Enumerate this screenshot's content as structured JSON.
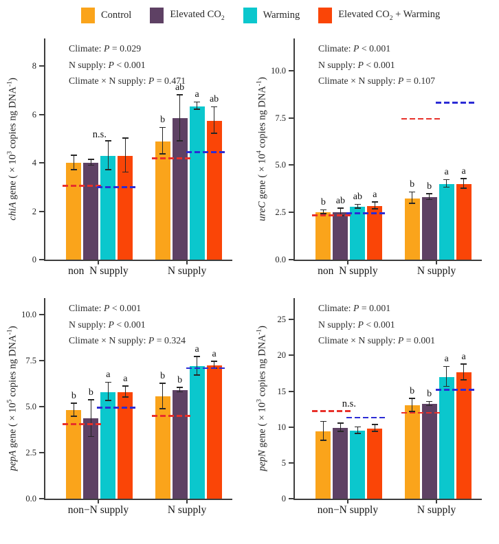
{
  "figure": {
    "colors": {
      "control": "#FAA41B",
      "elevated_co2": "#5E4164",
      "warming": "#0BC7CD",
      "eco2_warming": "#FA4507",
      "ref_red": "#E8302A",
      "ref_blue": "#2B2BD5",
      "axis": "#3C3C3C"
    },
    "series_order": [
      "control",
      "elevated_co2",
      "warming",
      "eco2_warming"
    ]
  },
  "legend": {
    "items": [
      {
        "key": "control",
        "pre": "Control",
        "sub": "",
        "post": ""
      },
      {
        "key": "elevated_co2",
        "pre": "Elevated CO",
        "sub": "2",
        "post": ""
      },
      {
        "key": "warming",
        "pre": "Warming",
        "sub": "",
        "post": ""
      },
      {
        "key": "eco2_warming",
        "pre": "Elevated CO",
        "sub": "2",
        "post": " + Warming"
      }
    ]
  },
  "chart_data": [
    {
      "id": "chiA",
      "type": "bar",
      "ylabel": {
        "gene": "chiA",
        "mid": " gene ( × 10",
        "exp": "3",
        "mid2": " copies ng DNA",
        "exp2": "-1",
        "post": ")"
      },
      "stats": [
        {
          "factor": "Climate",
          "op": "=",
          "p": "0.029"
        },
        {
          "factor": "N supply",
          "op": "<",
          "p": "0.001"
        },
        {
          "factor": "Climate × N supply",
          "op": "=",
          "p": "0.471"
        }
      ],
      "ymax": 9.15,
      "yticks": [
        {
          "v": 0,
          "label": "0"
        },
        {
          "v": 2,
          "label": "2"
        },
        {
          "v": 4,
          "label": "4"
        },
        {
          "v": 6,
          "label": "6"
        },
        {
          "v": 8,
          "label": "8"
        }
      ],
      "groups": [
        {
          "label": "non  N supply",
          "sig": {
            "text": "n.s.",
            "y": 5.15
          },
          "bars": [
            {
              "value": 4.0,
              "err": 0.3,
              "letter": ""
            },
            {
              "value": 4.0,
              "err": 0.12,
              "letter": ""
            },
            {
              "value": 4.3,
              "err": 0.6,
              "letter": ""
            },
            {
              "value": 4.3,
              "err": 0.7,
              "letter": ""
            }
          ],
          "ref_lines": [
            {
              "color": "red",
              "y": 3.05,
              "from": 0,
              "to": 1
            },
            {
              "color": "blue",
              "y": 3.0,
              "from": 2,
              "to": 3
            }
          ]
        },
        {
          "label": "N supply",
          "bars": [
            {
              "value": 4.9,
              "err": 0.55,
              "letter": "b"
            },
            {
              "value": 5.85,
              "err": 0.95,
              "letter": "ab"
            },
            {
              "value": 6.35,
              "err": 0.15,
              "letter": "a"
            },
            {
              "value": 5.75,
              "err": 0.55,
              "letter": "ab"
            }
          ],
          "ref_lines": [
            {
              "color": "red",
              "y": 4.2,
              "from": 0,
              "to": 1
            },
            {
              "color": "blue",
              "y": 4.45,
              "from": 2,
              "to": 3
            }
          ]
        }
      ]
    },
    {
      "id": "ureC",
      "type": "bar",
      "ylabel": {
        "gene": "ureC",
        "mid": " gene ( × 10",
        "exp": "4",
        "mid2": " copies ng DNA",
        "exp2": "-1",
        "post": ")"
      },
      "stats": [
        {
          "factor": "Climate",
          "op": "<",
          "p": "0.001"
        },
        {
          "factor": "N supply",
          "op": "<",
          "p": "0.001"
        },
        {
          "factor": "Climate × N supply",
          "op": "=",
          "p": "0.107"
        }
      ],
      "ymax": 11.7,
      "yticks": [
        {
          "v": 0,
          "label": "0.0"
        },
        {
          "v": 2.5,
          "label": "2.5"
        },
        {
          "v": 5,
          "label": "5.0"
        },
        {
          "v": 7.5,
          "label": "7.5"
        },
        {
          "v": 10,
          "label": "10.0"
        }
      ],
      "groups": [
        {
          "label": "non  N supply",
          "bars": [
            {
              "value": 2.5,
              "err": 0.1,
              "letter": "b"
            },
            {
              "value": 2.5,
              "err": 0.2,
              "letter": "ab"
            },
            {
              "value": 2.8,
              "err": 0.1,
              "letter": "ab"
            },
            {
              "value": 2.85,
              "err": 0.18,
              "letter": "a"
            }
          ],
          "ref_lines": [
            {
              "color": "red",
              "y": 2.35,
              "from": 0,
              "to": 1
            },
            {
              "color": "blue",
              "y": 2.45,
              "from": 2,
              "to": 3
            }
          ]
        },
        {
          "label": "N supply",
          "bars": [
            {
              "value": 3.25,
              "err": 0.3,
              "letter": "b"
            },
            {
              "value": 3.3,
              "err": 0.15,
              "letter": "b"
            },
            {
              "value": 4.0,
              "err": 0.2,
              "letter": "a"
            },
            {
              "value": 4.0,
              "err": 0.25,
              "letter": "a"
            }
          ],
          "ref_lines": [
            {
              "color": "red",
              "y": 7.45,
              "from": 0,
              "to": 1
            },
            {
              "color": "blue",
              "y": 8.3,
              "from": 2,
              "to": 3
            }
          ]
        }
      ]
    },
    {
      "id": "pepA",
      "type": "bar",
      "ylabel": {
        "gene": "pepA",
        "mid": " gene ( × 10",
        "exp": "5",
        "mid2": " copies ng DNA",
        "exp2": "-1",
        "post": ")"
      },
      "stats": [
        {
          "factor": "Climate",
          "op": "<",
          "p": "0.001"
        },
        {
          "factor": "N supply",
          "op": "<",
          "p": "0.001"
        },
        {
          "factor": "Climate × N supply",
          "op": "=",
          "p": "0.324"
        }
      ],
      "ymax": 10.9,
      "yticks": [
        {
          "v": 0,
          "label": "0.0"
        },
        {
          "v": 2.5,
          "label": "2.5"
        },
        {
          "v": 5,
          "label": "5.0"
        },
        {
          "v": 7.5,
          "label": "7.5"
        },
        {
          "v": 10,
          "label": "10.0"
        }
      ],
      "groups": [
        {
          "label": "non−N supply",
          "bars": [
            {
              "value": 4.8,
              "err": 0.35,
              "letter": "b"
            },
            {
              "value": 4.35,
              "err": 1.0,
              "letter": "b"
            },
            {
              "value": 5.8,
              "err": 0.5,
              "letter": "a"
            },
            {
              "value": 5.8,
              "err": 0.3,
              "letter": "a"
            }
          ],
          "ref_lines": [
            {
              "color": "red",
              "y": 4.05,
              "from": 0,
              "to": 1
            },
            {
              "color": "blue",
              "y": 4.95,
              "from": 2,
              "to": 3
            }
          ]
        },
        {
          "label": "N supply",
          "bars": [
            {
              "value": 5.55,
              "err": 0.7,
              "letter": "b"
            },
            {
              "value": 5.9,
              "err": 0.12,
              "letter": "b"
            },
            {
              "value": 7.2,
              "err": 0.5,
              "letter": "a"
            },
            {
              "value": 7.25,
              "err": 0.18,
              "letter": "a"
            }
          ],
          "ref_lines": [
            {
              "color": "red",
              "y": 4.5,
              "from": 0,
              "to": 1
            },
            {
              "color": "blue",
              "y": 7.1,
              "from": 2,
              "to": 3
            }
          ]
        }
      ]
    },
    {
      "id": "pepN",
      "type": "bar",
      "ylabel": {
        "gene": "pepN",
        "mid": " gene ( × 10",
        "exp": "3",
        "mid2": " copies ng DNA",
        "exp2": "-1",
        "post": ")"
      },
      "stats": [
        {
          "factor": "Climate",
          "op": "=",
          "p": "0.001"
        },
        {
          "factor": "N supply",
          "op": "<",
          "p": "0.001"
        },
        {
          "factor": "Climate × N supply",
          "op": "=",
          "p": "0.001"
        }
      ],
      "ymax": 28,
      "yticks": [
        {
          "v": 0,
          "label": "0"
        },
        {
          "v": 5,
          "label": "5"
        },
        {
          "v": 10,
          "label": "10"
        },
        {
          "v": 15,
          "label": "15"
        },
        {
          "v": 20,
          "label": "20"
        },
        {
          "v": 25,
          "label": "25"
        }
      ],
      "groups": [
        {
          "label": "non−N supply",
          "sig": {
            "text": "n.s.",
            "y": 13.1
          },
          "bars": [
            {
              "value": 9.4,
              "err": 1.3,
              "letter": ""
            },
            {
              "value": 9.9,
              "err": 0.6,
              "letter": ""
            },
            {
              "value": 9.5,
              "err": 0.45,
              "letter": ""
            },
            {
              "value": 9.8,
              "err": 0.5,
              "letter": ""
            }
          ],
          "ref_lines": [
            {
              "color": "red",
              "y": 12.2,
              "from": 0,
              "to": 1
            },
            {
              "color": "blue",
              "y": 11.3,
              "from": 2,
              "to": 3
            }
          ]
        },
        {
          "label": "N supply",
          "bars": [
            {
              "value": 13.0,
              "err": 0.9,
              "letter": "b"
            },
            {
              "value": 13.2,
              "err": 0.3,
              "letter": "b"
            },
            {
              "value": 17.0,
              "err": 1.4,
              "letter": "a"
            },
            {
              "value": 17.6,
              "err": 1.1,
              "letter": "a"
            }
          ],
          "ref_lines": [
            {
              "color": "red",
              "y": 12.0,
              "from": 0,
              "to": 1
            },
            {
              "color": "blue",
              "y": 15.2,
              "from": 2,
              "to": 3
            }
          ]
        }
      ]
    }
  ]
}
